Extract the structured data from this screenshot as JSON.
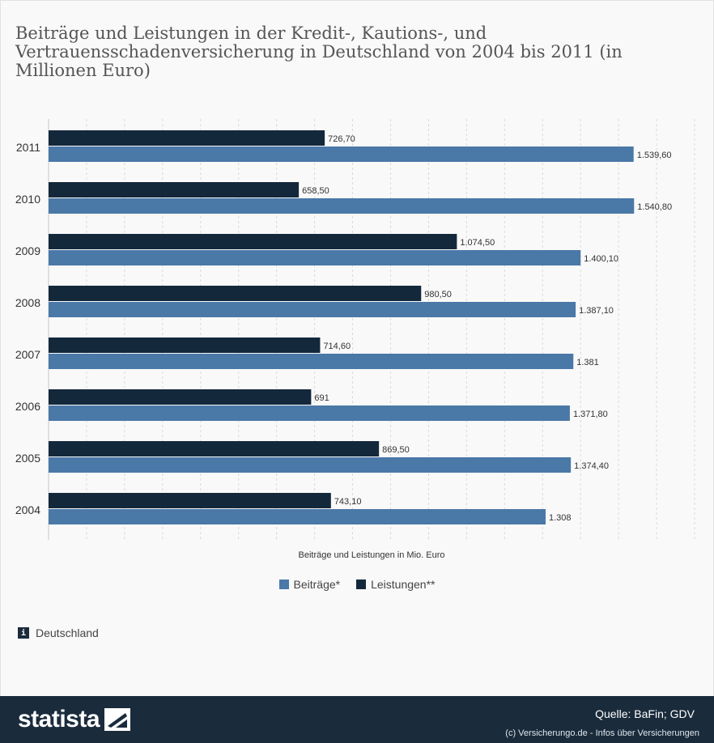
{
  "title": "Beiträge und Leistungen in der Kredit-, Kautions-, und Vertrauensschadenversicherung in Deutschland von 2004 bis 2011 (in Millionen Euro)",
  "chart_data": {
    "type": "bar",
    "orientation": "horizontal",
    "categories": [
      "2011",
      "2010",
      "2009",
      "2008",
      "2007",
      "2006",
      "2005",
      "2004"
    ],
    "series": [
      {
        "name": "Leistungen**",
        "color": "#14283c",
        "values": [
          726.7,
          658.5,
          1074.5,
          980.5,
          714.6,
          691,
          869.5,
          743.1
        ],
        "labels": [
          "726,70",
          "658,50",
          "1.074,50",
          "980,50",
          "714,60",
          "691",
          "869,50",
          "743,10"
        ]
      },
      {
        "name": "Beiträge*",
        "color": "#4a78a7",
        "values": [
          1539.6,
          1540.8,
          1400.1,
          1387.1,
          1381,
          1371.8,
          1374.4,
          1308
        ],
        "labels": [
          "1.539,60",
          "1.540,80",
          "1.400,10",
          "1.387,10",
          "1.381",
          "1.371,80",
          "1.374,40",
          "1.308"
        ]
      }
    ],
    "xlabel": "Beiträge und Leistungen in Mio. Euro",
    "xlim": [
      0,
      1700
    ],
    "grid": true,
    "legend_position": "bottom"
  },
  "legend": [
    {
      "label": "Beiträge*",
      "color": "#4a78a7"
    },
    {
      "label": "Leistungen**",
      "color": "#14283c"
    }
  ],
  "region": "Deutschland",
  "footer": {
    "brand": "statista",
    "source": "Quelle: BaFin; GDV",
    "copyright": "(c) Versicherungo.de - Infos über Versicherungen"
  }
}
